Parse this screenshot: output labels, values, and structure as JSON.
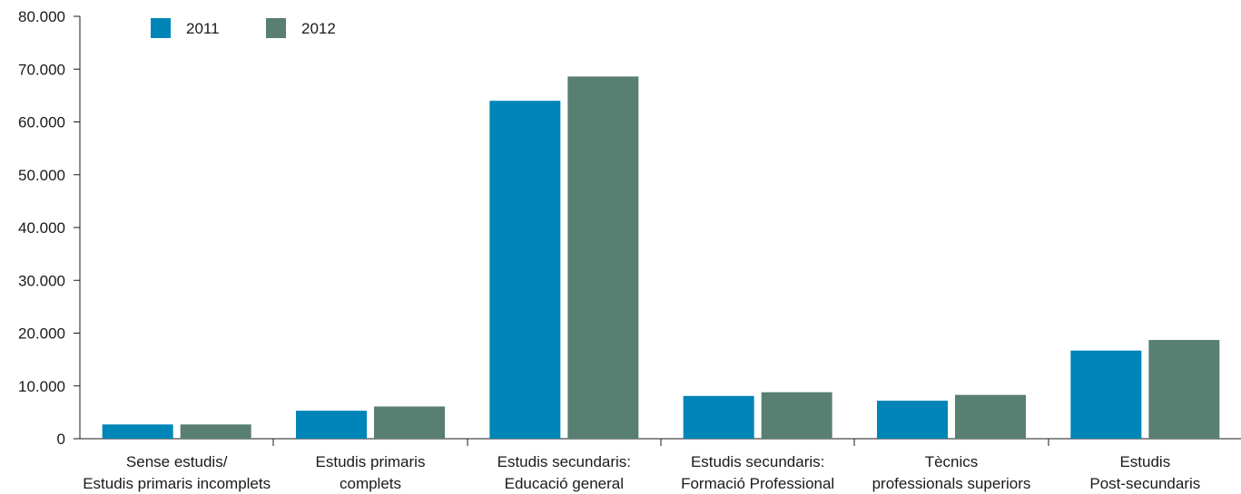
{
  "chart_data": {
    "type": "bar",
    "categories": [
      [
        "Sense estudis/",
        "Estudis primaris incomplets"
      ],
      [
        "Estudis primaris",
        "complets"
      ],
      [
        "Estudis secundaris:",
        "Educació general"
      ],
      [
        "Estudis secundaris:",
        "Formació Professional"
      ],
      [
        "Tècnics",
        "professionals superiors"
      ],
      [
        "Estudis",
        "Post-secundaris"
      ]
    ],
    "series": [
      {
        "name": "2011",
        "color": "#0085b8",
        "values": [
          2700,
          5300,
          64000,
          8100,
          7200,
          16700
        ]
      },
      {
        "name": "2012",
        "color": "#587f71",
        "values": [
          2700,
          6100,
          68600,
          8800,
          8300,
          18700
        ]
      }
    ],
    "ylim": [
      0,
      80000
    ],
    "yticks": [
      "0",
      "10.000",
      "20.000",
      "30.000",
      "40.000",
      "50.000",
      "60.000",
      "70.000",
      "80.000"
    ],
    "grid": false,
    "legend": "top-left"
  }
}
